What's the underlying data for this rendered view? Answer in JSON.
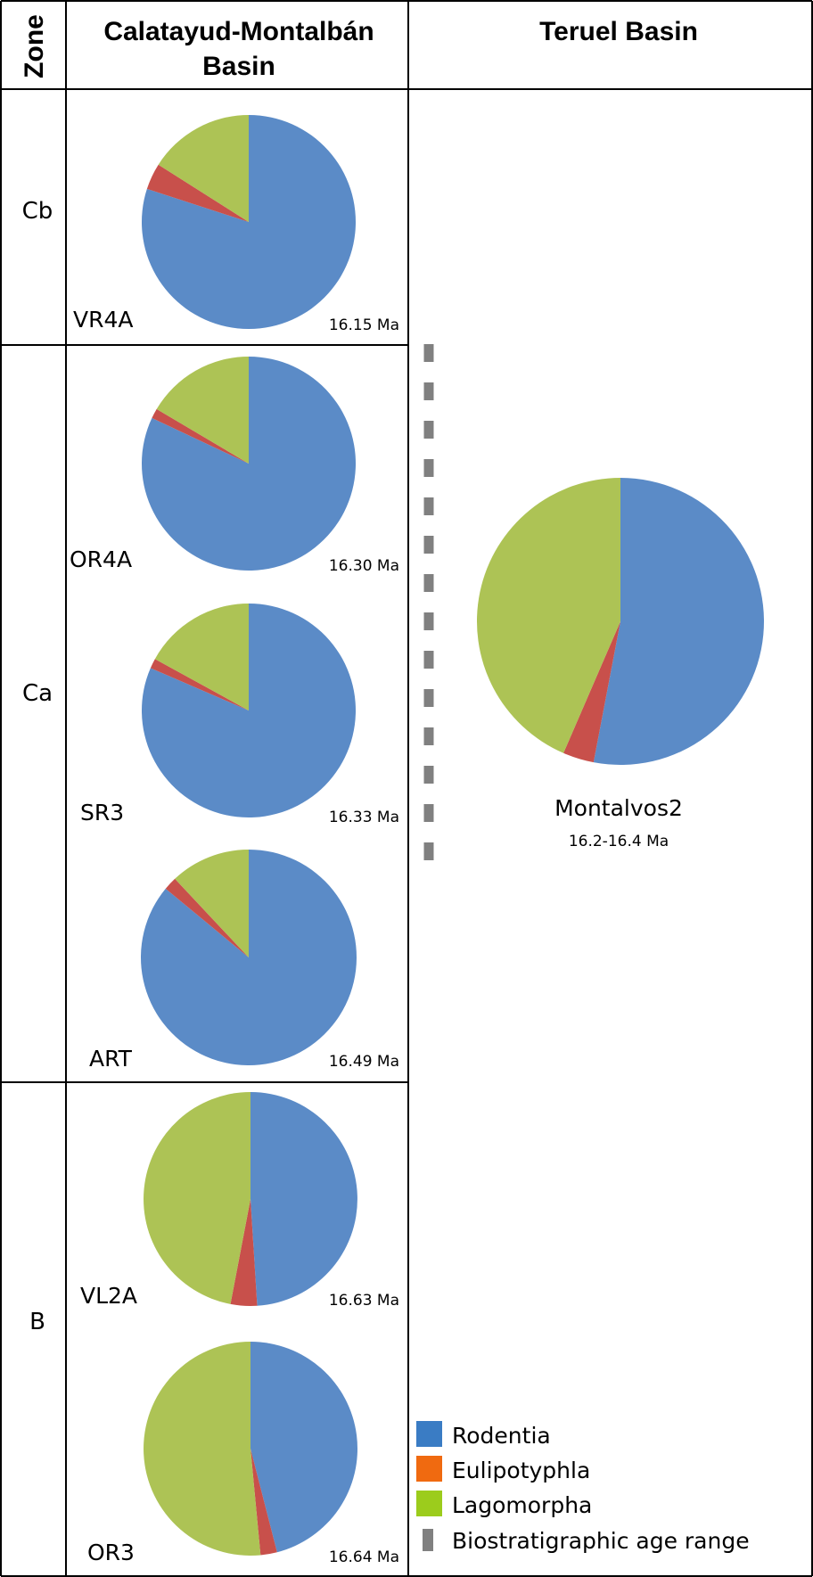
{
  "headers": {
    "zone": "Zone",
    "basin1_line1": "Calatayud-Montalbán",
    "basin1_line2": "Basin",
    "basin2": "Teruel Basin"
  },
  "zones": [
    "Cb",
    "Ca",
    "B"
  ],
  "colors": {
    "rodentia": "#5B8BC7",
    "eulipotyphla": "#C8504B",
    "lagomorpha": "#ADC355",
    "rule": "#808080",
    "legend_rodentia": "#3A7CC4",
    "legend_eulipotyphla": "#F06A10",
    "legend_lagomorpha": "#9CCC1C"
  },
  "legend": {
    "rodentia": "Rodentia",
    "eulipotyphla": "Eulipotyphla",
    "lagomorpha": "Lagomorpha",
    "range": "Biostratigraphic age range"
  },
  "chart_data": {
    "type": "pie",
    "categories": [
      "Rodentia",
      "Eulipotyphla",
      "Lagomorpha"
    ],
    "units": "percent",
    "pies": [
      {
        "site": "VR4A",
        "age": "16.15 Ma",
        "zone": "Cb",
        "basin": "Calatayud-Montalbán Basin",
        "values": [
          80,
          4,
          16
        ]
      },
      {
        "site": "OR4A",
        "age": "16.30 Ma",
        "zone": "Ca",
        "basin": "Calatayud-Montalbán Basin",
        "values": [
          82,
          1.5,
          16.5
        ]
      },
      {
        "site": "SR3",
        "age": "16.33 Ma",
        "zone": "Ca",
        "basin": "Calatayud-Montalbán Basin",
        "values": [
          81.5,
          1.5,
          17
        ]
      },
      {
        "site": "ART",
        "age": "16.49 Ma",
        "zone": "Ca",
        "basin": "Calatayud-Montalbán Basin",
        "values": [
          86,
          2,
          12
        ]
      },
      {
        "site": "VL2A",
        "age": "16.63 Ma",
        "zone": "B",
        "basin": "Calatayud-Montalbán Basin",
        "values": [
          49,
          4,
          47
        ]
      },
      {
        "site": "OR3",
        "age": "16.64 Ma",
        "zone": "B",
        "basin": "Calatayud-Montalbán Basin",
        "values": [
          46,
          2.5,
          51.5
        ]
      },
      {
        "site": "Montalvos2",
        "age": "16.2-16.4 Ma",
        "zone": "Ca",
        "basin": "Teruel Basin",
        "values": [
          53,
          3.5,
          43.5
        ]
      }
    ]
  }
}
